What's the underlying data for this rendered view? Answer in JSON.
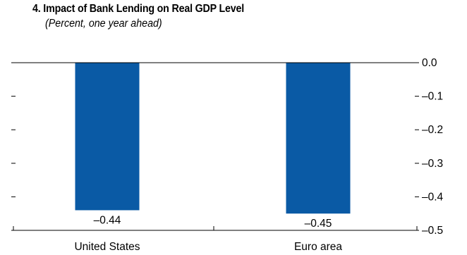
{
  "chart_data": {
    "type": "bar",
    "title": "4. Impact of Bank Lending on Real GDP Level",
    "subtitle": "(Percent, one year ahead)",
    "categories": [
      "United States",
      "Euro area"
    ],
    "values": [
      -0.44,
      -0.45
    ],
    "data_labels": [
      "–0.44",
      "–0.45"
    ],
    "yticks": [
      0.0,
      -0.1,
      -0.2,
      -0.3,
      -0.4,
      -0.5
    ],
    "ytick_labels": [
      "0.0",
      "–0.1",
      "–0.2",
      "–0.3",
      "–0.4",
      "–0.5"
    ],
    "ylim": [
      -0.5,
      0.0
    ],
    "xlabel": "",
    "ylabel": "",
    "grid": false,
    "colors": {
      "bar": "#0a5aa5",
      "axis": "#000000"
    }
  }
}
